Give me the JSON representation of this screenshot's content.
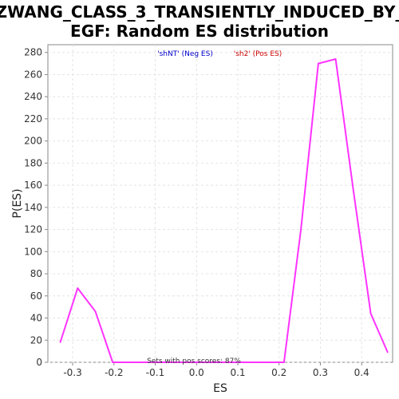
{
  "chart_data": {
    "type": "line",
    "title_lines": [
      "ZWANG_CLASS_3_TRANSIENTLY_INDUCED_BY_",
      "EGF: Random ES distribution"
    ],
    "xlabel": "ES",
    "ylabel": "P(ES)",
    "xlim": [
      -0.36,
      0.475
    ],
    "ylim": [
      0,
      287
    ],
    "xticks": [
      -0.3,
      -0.2,
      -0.1,
      0.0,
      0.1,
      0.2,
      0.3,
      0.4
    ],
    "xtick_labels": [
      "-0.3",
      "-0.2",
      "-0.1",
      "0.0",
      "0.1",
      "0.2",
      "0.3",
      "0.4"
    ],
    "yticks": [
      0,
      20,
      40,
      60,
      80,
      100,
      120,
      140,
      160,
      180,
      200,
      220,
      240,
      260,
      280
    ],
    "ytick_labels": [
      "0",
      "20",
      "40",
      "60",
      "80",
      "100",
      "120",
      "140",
      "160",
      "180",
      "200",
      "220",
      "240",
      "260",
      "280"
    ],
    "grid": true,
    "legend": [
      {
        "label": "'shNT' (Neg ES)",
        "color": "#0000cc"
      },
      {
        "label": "'sh2' (Pos ES)",
        "color": "#cc0000"
      }
    ],
    "annotation": "Sets with pos scores: 87%",
    "series": [
      {
        "color": "#ff33ff",
        "x": [
          -0.33,
          -0.288,
          -0.245,
          -0.203,
          -0.16,
          -0.118,
          -0.075,
          -0.033,
          0.01,
          0.052,
          0.095,
          0.137,
          0.18,
          0.212,
          0.253,
          0.295,
          0.337,
          0.38,
          0.422,
          0.463
        ],
        "y": [
          18,
          67,
          46,
          0,
          0,
          0,
          0,
          0,
          0,
          0,
          0,
          0,
          0,
          0,
          120,
          270,
          274,
          155,
          44,
          9
        ]
      }
    ]
  }
}
